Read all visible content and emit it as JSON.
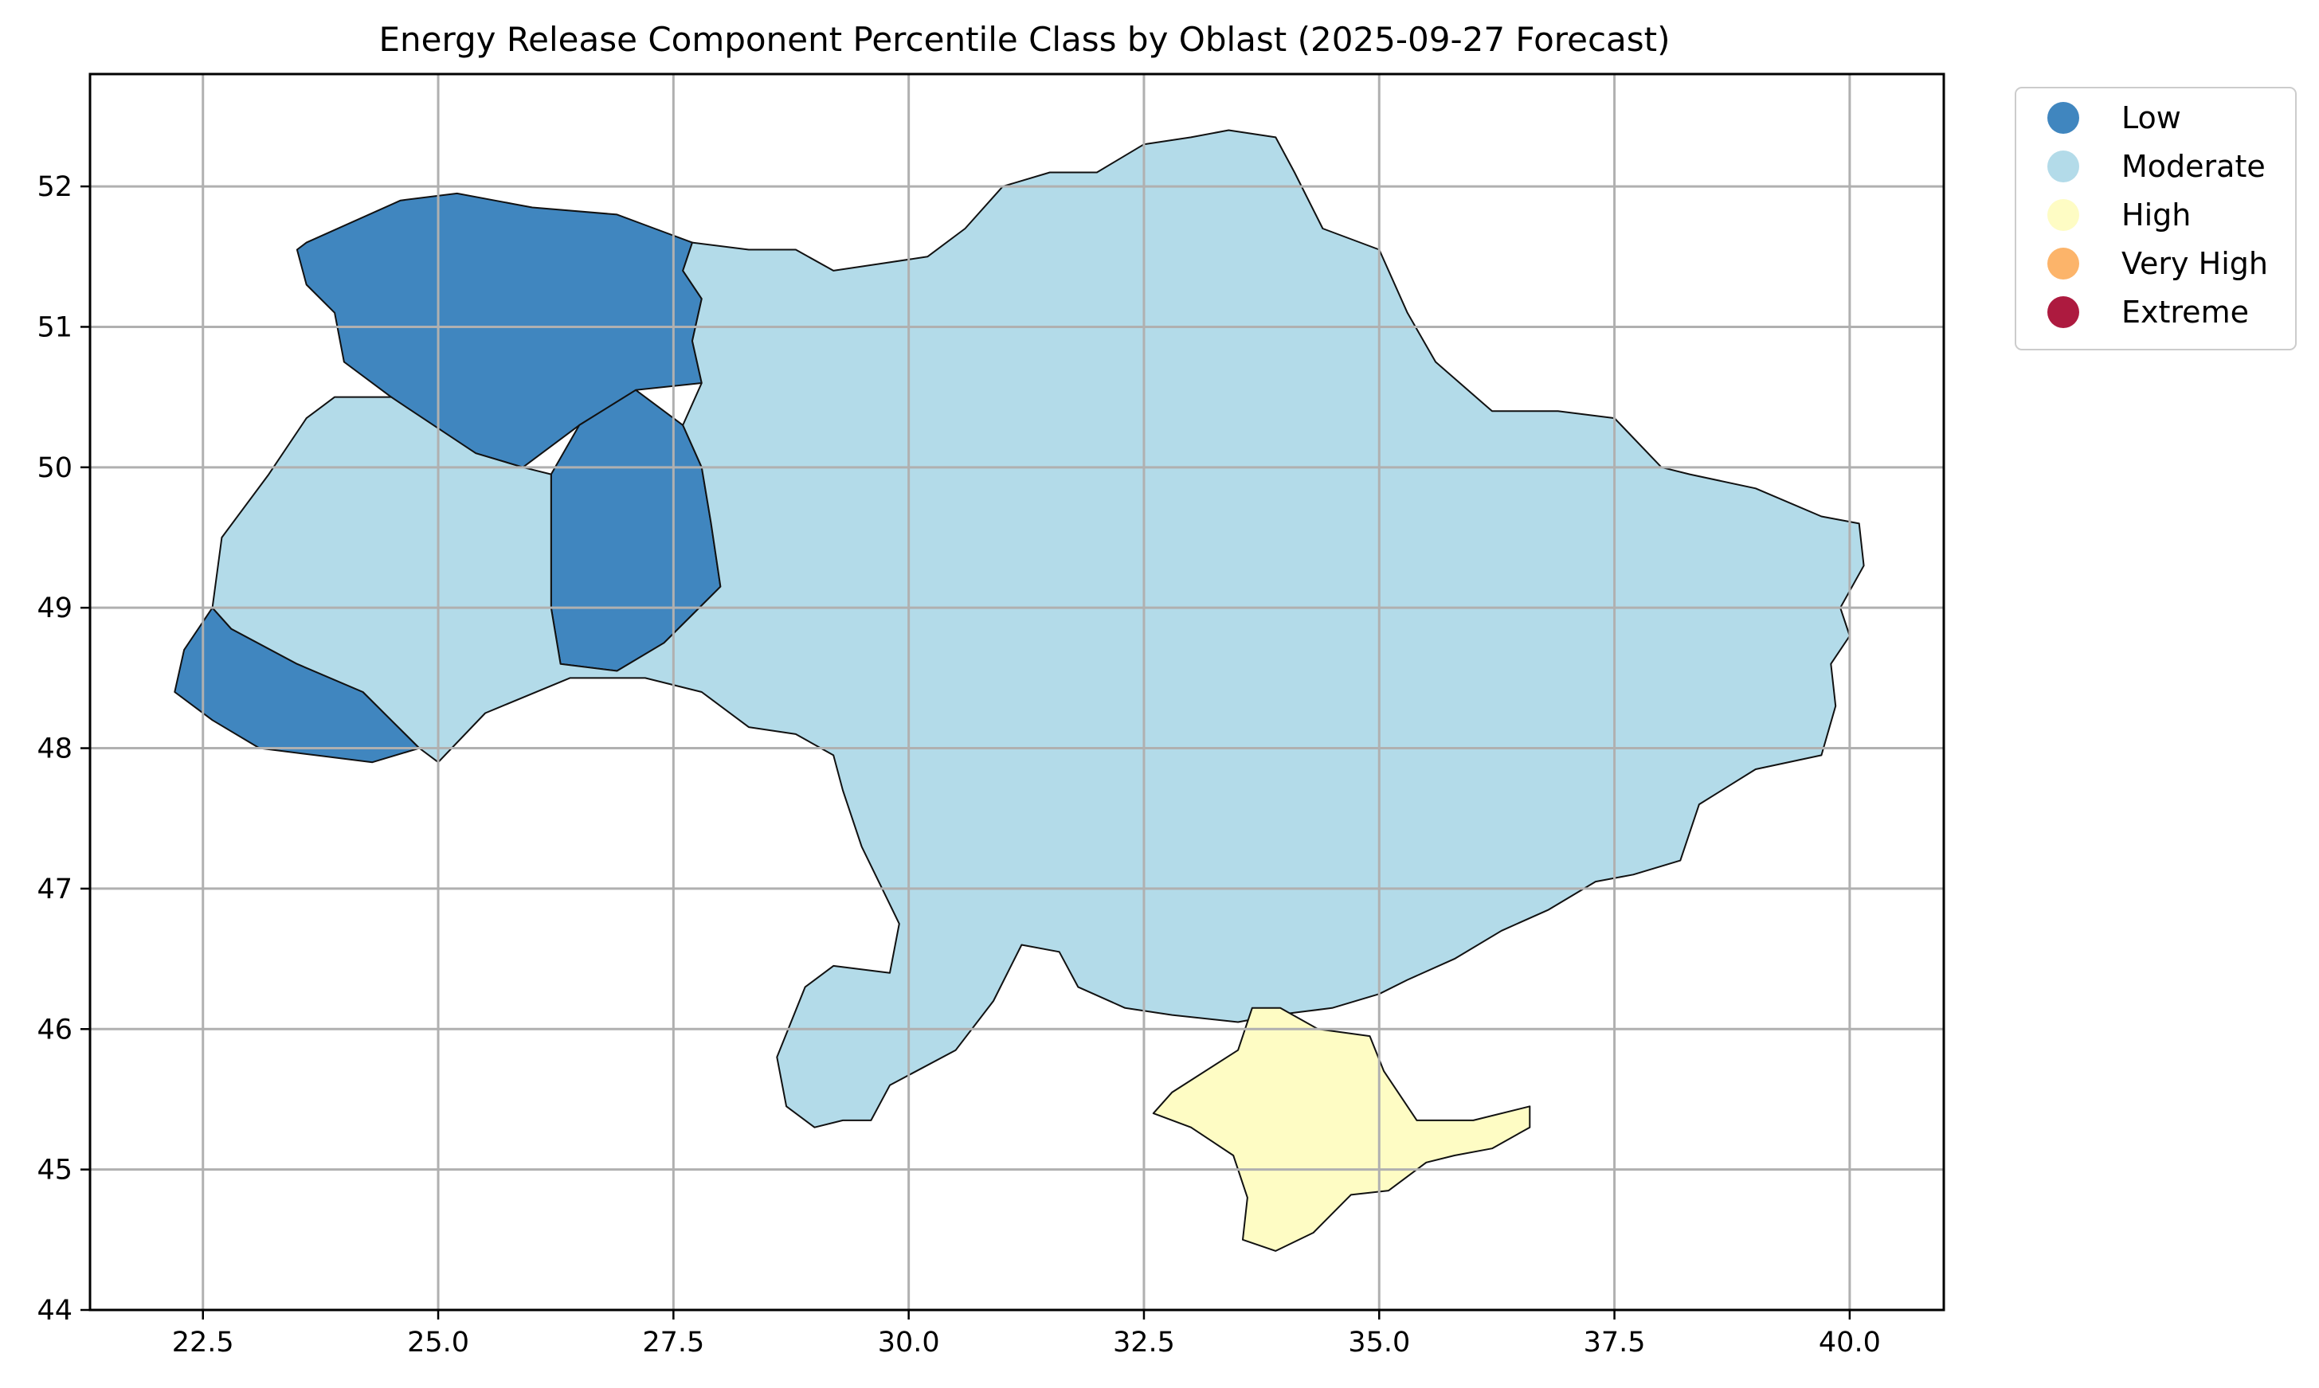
{
  "chart_data": {
    "type": "choropleth",
    "title": "Energy Release Component Percentile Class by Oblast (2025-09-27 Forecast)",
    "x_ticks": [
      "22.5",
      "25.0",
      "27.5",
      "30.0",
      "32.5",
      "35.0",
      "37.5",
      "40.0"
    ],
    "y_ticks": [
      "44",
      "45",
      "46",
      "47",
      "48",
      "49",
      "50",
      "51",
      "52"
    ],
    "x_tick_values": [
      22.5,
      25.0,
      27.5,
      30.0,
      32.5,
      35.0,
      37.5,
      40.0
    ],
    "y_tick_values": [
      44,
      45,
      46,
      47,
      48,
      49,
      50,
      51,
      52
    ],
    "xlim": [
      21.3,
      41.0
    ],
    "ylim": [
      44.0,
      52.8
    ],
    "grid": true,
    "legend_placement": "outside-top-right",
    "legend": [
      {
        "label": "Low",
        "color": "#4086bf"
      },
      {
        "label": "Moderate",
        "color": "#b3dbe9"
      },
      {
        "label": "High",
        "color": "#fefcc4"
      },
      {
        "label": "Very High",
        "color": "#fcb46a"
      },
      {
        "label": "Extreme",
        "color": "#ad1a3f"
      }
    ],
    "regions": [
      {
        "class": "Low",
        "outline": [
          [
            23.6,
            51.6
          ],
          [
            24.6,
            51.9
          ],
          [
            25.2,
            51.95
          ],
          [
            25.6,
            51.9
          ],
          [
            26.0,
            51.85
          ],
          [
            26.9,
            51.8
          ],
          [
            27.3,
            51.7
          ],
          [
            27.7,
            51.6
          ],
          [
            27.6,
            51.4
          ],
          [
            27.8,
            51.2
          ],
          [
            27.7,
            50.9
          ],
          [
            27.8,
            50.6
          ],
          [
            27.1,
            50.55
          ],
          [
            26.5,
            50.3
          ],
          [
            25.9,
            50.0
          ],
          [
            25.4,
            50.1
          ],
          [
            24.9,
            50.3
          ],
          [
            24.5,
            50.5
          ],
          [
            24.0,
            50.75
          ],
          [
            23.9,
            51.1
          ],
          [
            23.6,
            51.3
          ],
          [
            23.5,
            51.55
          ]
        ]
      },
      {
        "class": "Low",
        "outline": [
          [
            27.1,
            50.55
          ],
          [
            27.6,
            50.3
          ],
          [
            27.8,
            50.0
          ],
          [
            27.9,
            49.6
          ],
          [
            28.0,
            49.15
          ],
          [
            27.7,
            48.95
          ],
          [
            27.4,
            48.75
          ],
          [
            26.9,
            48.55
          ],
          [
            26.3,
            48.6
          ],
          [
            26.2,
            49.0
          ],
          [
            26.2,
            49.5
          ],
          [
            26.2,
            49.95
          ],
          [
            26.5,
            50.3
          ]
        ]
      },
      {
        "class": "Low",
        "outline": [
          [
            22.6,
            49.0
          ],
          [
            22.8,
            48.85
          ],
          [
            23.5,
            48.6
          ],
          [
            24.2,
            48.4
          ],
          [
            24.5,
            48.2
          ],
          [
            24.8,
            48.0
          ],
          [
            24.3,
            47.9
          ],
          [
            23.7,
            47.95
          ],
          [
            23.1,
            48.0
          ],
          [
            22.6,
            48.2
          ],
          [
            22.2,
            48.4
          ],
          [
            22.3,
            48.7
          ]
        ]
      },
      {
        "class": "Moderate",
        "outline": [
          [
            23.9,
            50.5
          ],
          [
            24.5,
            50.5
          ],
          [
            25.4,
            50.1
          ],
          [
            25.9,
            50.0
          ],
          [
            26.2,
            49.95
          ],
          [
            26.2,
            49.5
          ],
          [
            26.2,
            49.0
          ],
          [
            26.3,
            48.6
          ],
          [
            26.9,
            48.55
          ],
          [
            27.4,
            48.75
          ],
          [
            27.7,
            48.95
          ],
          [
            28.0,
            49.15
          ],
          [
            27.9,
            49.6
          ],
          [
            27.8,
            50.0
          ],
          [
            27.6,
            50.3
          ],
          [
            27.8,
            50.6
          ],
          [
            27.7,
            50.9
          ],
          [
            27.8,
            51.2
          ],
          [
            27.6,
            51.4
          ],
          [
            27.7,
            51.6
          ],
          [
            28.3,
            51.55
          ],
          [
            28.8,
            51.55
          ],
          [
            29.2,
            51.4
          ],
          [
            29.7,
            51.45
          ],
          [
            30.2,
            51.5
          ],
          [
            30.6,
            51.7
          ],
          [
            31.0,
            52.0
          ],
          [
            31.5,
            52.1
          ],
          [
            32.0,
            52.1
          ],
          [
            32.5,
            52.3
          ],
          [
            33.0,
            52.35
          ],
          [
            33.4,
            52.4
          ],
          [
            33.9,
            52.35
          ],
          [
            34.1,
            52.1
          ],
          [
            34.4,
            51.7
          ],
          [
            35.0,
            51.55
          ],
          [
            35.3,
            51.1
          ],
          [
            35.6,
            50.75
          ],
          [
            36.2,
            50.4
          ],
          [
            36.9,
            50.4
          ],
          [
            37.5,
            50.35
          ],
          [
            38.0,
            50.0
          ],
          [
            38.3,
            49.95
          ],
          [
            39.0,
            49.85
          ],
          [
            39.7,
            49.65
          ],
          [
            40.1,
            49.6
          ],
          [
            40.15,
            49.3
          ],
          [
            39.9,
            49.0
          ],
          [
            40.0,
            48.8
          ],
          [
            39.8,
            48.6
          ],
          [
            39.85,
            48.3
          ],
          [
            39.7,
            47.95
          ],
          [
            39.0,
            47.85
          ],
          [
            38.4,
            47.6
          ],
          [
            38.2,
            47.2
          ],
          [
            37.7,
            47.1
          ],
          [
            37.3,
            47.05
          ],
          [
            36.8,
            46.85
          ],
          [
            36.3,
            46.7
          ],
          [
            35.8,
            46.5
          ],
          [
            35.3,
            46.35
          ],
          [
            35.0,
            46.25
          ],
          [
            34.5,
            46.15
          ],
          [
            33.9,
            46.1
          ],
          [
            33.5,
            46.05
          ],
          [
            32.8,
            46.1
          ],
          [
            32.3,
            46.15
          ],
          [
            31.8,
            46.3
          ],
          [
            31.6,
            46.55
          ],
          [
            31.2,
            46.6
          ],
          [
            30.9,
            46.2
          ],
          [
            30.5,
            45.85
          ],
          [
            29.8,
            45.6
          ],
          [
            29.6,
            45.35
          ],
          [
            29.3,
            45.35
          ],
          [
            29.0,
            45.3
          ],
          [
            28.7,
            45.45
          ],
          [
            28.6,
            45.8
          ],
          [
            28.9,
            46.3
          ],
          [
            29.2,
            46.45
          ],
          [
            29.8,
            46.4
          ],
          [
            29.9,
            46.75
          ],
          [
            29.5,
            47.3
          ],
          [
            29.3,
            47.7
          ],
          [
            29.2,
            47.95
          ],
          [
            28.8,
            48.1
          ],
          [
            28.3,
            48.15
          ],
          [
            27.8,
            48.4
          ],
          [
            27.2,
            48.5
          ],
          [
            26.4,
            48.5
          ],
          [
            25.5,
            48.25
          ],
          [
            25.0,
            47.9
          ],
          [
            24.8,
            48.0
          ],
          [
            24.5,
            48.2
          ],
          [
            24.2,
            48.4
          ],
          [
            23.5,
            48.6
          ],
          [
            22.8,
            48.85
          ],
          [
            22.6,
            49.0
          ],
          [
            22.7,
            49.5
          ],
          [
            23.2,
            49.95
          ],
          [
            23.6,
            50.35
          ]
        ]
      },
      {
        "class": "High",
        "outline": [
          [
            33.65,
            46.15
          ],
          [
            33.95,
            46.15
          ],
          [
            34.35,
            46.0
          ],
          [
            34.9,
            45.95
          ],
          [
            35.05,
            45.7
          ],
          [
            35.4,
            45.35
          ],
          [
            36.0,
            45.35
          ],
          [
            36.6,
            45.45
          ],
          [
            36.6,
            45.3
          ],
          [
            36.2,
            45.15
          ],
          [
            35.8,
            45.1
          ],
          [
            35.5,
            45.05
          ],
          [
            35.1,
            44.85
          ],
          [
            34.7,
            44.82
          ],
          [
            34.3,
            44.55
          ],
          [
            33.9,
            44.42
          ],
          [
            33.55,
            44.5
          ],
          [
            33.6,
            44.8
          ],
          [
            33.45,
            45.1
          ],
          [
            33.0,
            45.3
          ],
          [
            32.6,
            45.4
          ],
          [
            32.8,
            45.55
          ],
          [
            33.5,
            45.85
          ]
        ]
      }
    ]
  }
}
